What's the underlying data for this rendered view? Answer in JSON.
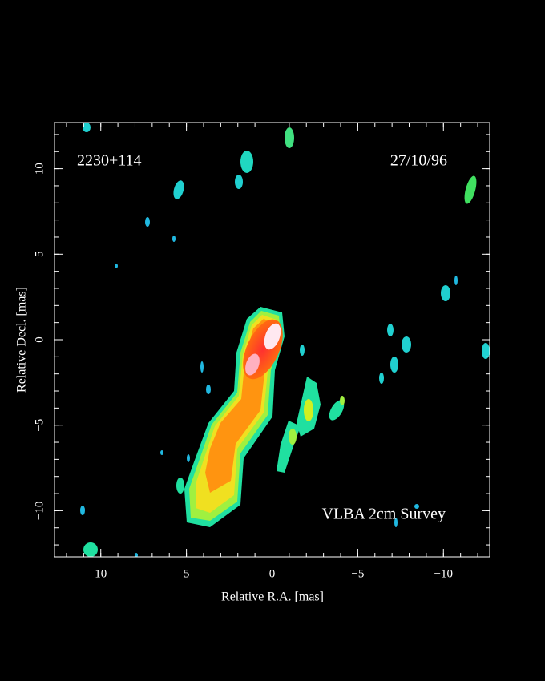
{
  "chart_data": {
    "type": "image",
    "annotations": [
      "2230+114",
      "27/10/96",
      "VLBA 2cm Survey"
    ],
    "xlabel": "Relative R.A. [mas]",
    "ylabel": "Relative Decl. [mas]",
    "xlim": [
      12.7,
      -12.7
    ],
    "ylim": [
      -12.7,
      12.7
    ],
    "xticks": [
      10,
      5,
      0,
      {
        "value": -5,
        "label": "−5"
      },
      {
        "value": -10,
        "label": "−10"
      }
    ],
    "yticks": [
      {
        "value": -10,
        "label": "−10"
      },
      {
        "value": -5,
        "label": "−5"
      },
      0,
      5,
      10
    ]
  }
}
